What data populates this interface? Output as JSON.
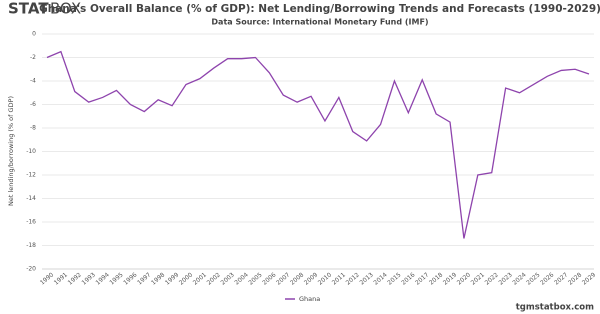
{
  "brand": "STAT",
  "brand_accent": "BOX",
  "footer": "tgmstatbox.com",
  "chart_data": {
    "type": "line",
    "title": "Ghana's Overall Balance (% of GDP): Net Lending/Borrowing Trends and Forecasts (1990-2029)",
    "subtitle": "Data Source: International Monetary Fund (IMF)",
    "y_label": "Net lending/borrowing (% of GDP)",
    "categories": [
      "1990",
      "1991",
      "1992",
      "1993",
      "1994",
      "1995",
      "1996",
      "1997",
      "1998",
      "1999",
      "2000",
      "2001",
      "2002",
      "2003",
      "2004",
      "2005",
      "2006",
      "2007",
      "2008",
      "2009",
      "2010",
      "2011",
      "2012",
      "2013",
      "2014",
      "2015",
      "2016",
      "2017",
      "2018",
      "2019",
      "2020",
      "2021",
      "2022",
      "2023",
      "2024",
      "2025",
      "2026",
      "2027",
      "2028",
      "2029"
    ],
    "series": [
      {
        "name": "Ghana",
        "color": "#8e44ad",
        "values": [
          -2.0,
          -1.5,
          -4.9,
          -5.8,
          -5.4,
          -4.8,
          -6.0,
          -6.6,
          -5.6,
          -6.1,
          -4.3,
          -3.8,
          -2.9,
          -2.1,
          -2.1,
          -2.0,
          -3.3,
          -5.2,
          -5.8,
          -5.3,
          -7.4,
          -5.4,
          -8.3,
          -9.1,
          -7.7,
          -4.0,
          -6.7,
          -3.9,
          -6.8,
          -7.5,
          -17.4,
          -12.0,
          -11.8,
          -4.6,
          -5.0,
          -4.3,
          -3.6,
          -3.1,
          -3.0,
          -3.4
        ]
      }
    ],
    "ylim": [
      -20,
      0
    ],
    "yticks": [
      -20,
      -18,
      -16,
      -14,
      -12,
      -10,
      -8,
      -6,
      -4,
      -2,
      0
    ],
    "grid": true,
    "legend": "bottom"
  }
}
